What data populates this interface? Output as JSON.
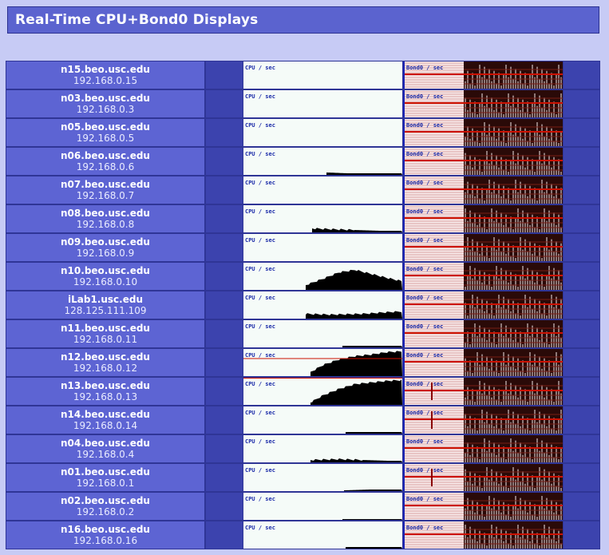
{
  "page": {
    "title": "Real-Time CPU+Bond0 Displays"
  },
  "labels": {
    "cpu": "CPU / sec",
    "bond": "Bond0 / sec"
  },
  "colors": {
    "accent": "#5b63cf",
    "host_cell": "#5d64d3",
    "cpu_fill": "#000000",
    "bond_line": "#cc1100",
    "grid_border": "#2f3596"
  },
  "nodes": [
    {
      "name": "n15.beo.usc.edu",
      "ip": "192.168.0.15",
      "cpu": []
    },
    {
      "name": "n03.beo.usc.edu",
      "ip": "192.168.0.3",
      "cpu": []
    },
    {
      "name": "n05.beo.usc.edu",
      "ip": "192.168.0.5",
      "cpu": []
    },
    {
      "name": "n06.beo.usc.edu",
      "ip": "192.168.0.6",
      "cpu": [
        0,
        0,
        0,
        0,
        0,
        0,
        0,
        0,
        0,
        0,
        0,
        0,
        0,
        0,
        0,
        0,
        0,
        0,
        0,
        0,
        0,
        0,
        0,
        0,
        0,
        0,
        0,
        0,
        0,
        0,
        0,
        0,
        0,
        0,
        0,
        0,
        0,
        0,
        0,
        0,
        0,
        0,
        0,
        0,
        0,
        0,
        0,
        0,
        0,
        0,
        0,
        0,
        0,
        0,
        0,
        0,
        0,
        0,
        0,
        0,
        0,
        0,
        0,
        0,
        0,
        0,
        0,
        0,
        0,
        0,
        0,
        0,
        0,
        0,
        0,
        0,
        0,
        0,
        0,
        0,
        0,
        0,
        0,
        0,
        0,
        0,
        0,
        0,
        0,
        0,
        0,
        0,
        0,
        0,
        0,
        0,
        0,
        0,
        0,
        0,
        0,
        0,
        0,
        0,
        0,
        0,
        0,
        0,
        0,
        0,
        0,
        0,
        0,
        0,
        0,
        0,
        0,
        0,
        0,
        0,
        0,
        0,
        0,
        0,
        0,
        0,
        0,
        0,
        0,
        0,
        0,
        0,
        0,
        0,
        0,
        0,
        0,
        0,
        0,
        0,
        0,
        0,
        0,
        0,
        0,
        0,
        0,
        0,
        0,
        0,
        0,
        0,
        0,
        0,
        0,
        0,
        0,
        0,
        0,
        0,
        0,
        0,
        0,
        0,
        0,
        0,
        0,
        0,
        0,
        0,
        0,
        0,
        0,
        0,
        0,
        0,
        0,
        0,
        0,
        0,
        0,
        0,
        0,
        0,
        0,
        0,
        0,
        0,
        0,
        0,
        0,
        0,
        0,
        0,
        0,
        0,
        0,
        0,
        0,
        0
      ]
    },
    {
      "name": "n07.beo.usc.edu",
      "ip": "192.168.0.7",
      "cpu": []
    },
    {
      "name": "n08.beo.usc.edu",
      "ip": "192.168.0.8",
      "cpu": []
    },
    {
      "name": "n09.beo.usc.edu",
      "ip": "192.168.0.9",
      "cpu": []
    },
    {
      "name": "n10.beo.usc.edu",
      "ip": "192.168.0.10",
      "cpu": []
    },
    {
      "name": "iLab1.usc.edu",
      "ip": "128.125.111.109",
      "cpu": []
    },
    {
      "name": "n11.beo.usc.edu",
      "ip": "192.168.0.11",
      "cpu": []
    },
    {
      "name": "n12.beo.usc.edu",
      "ip": "192.168.0.12",
      "cpu": []
    },
    {
      "name": "n13.beo.usc.edu",
      "ip": "192.168.0.13",
      "cpu": []
    },
    {
      "name": "n14.beo.usc.edu",
      "ip": "192.168.0.14",
      "cpu": []
    },
    {
      "name": "n04.beo.usc.edu",
      "ip": "192.168.0.4",
      "cpu": []
    },
    {
      "name": "n01.beo.usc.edu",
      "ip": "192.168.0.1",
      "cpu": []
    },
    {
      "name": "n02.beo.usc.edu",
      "ip": "192.168.0.2",
      "cpu": []
    },
    {
      "name": "n16.beo.usc.edu",
      "ip": "192.168.0.16",
      "cpu": []
    }
  ]
}
